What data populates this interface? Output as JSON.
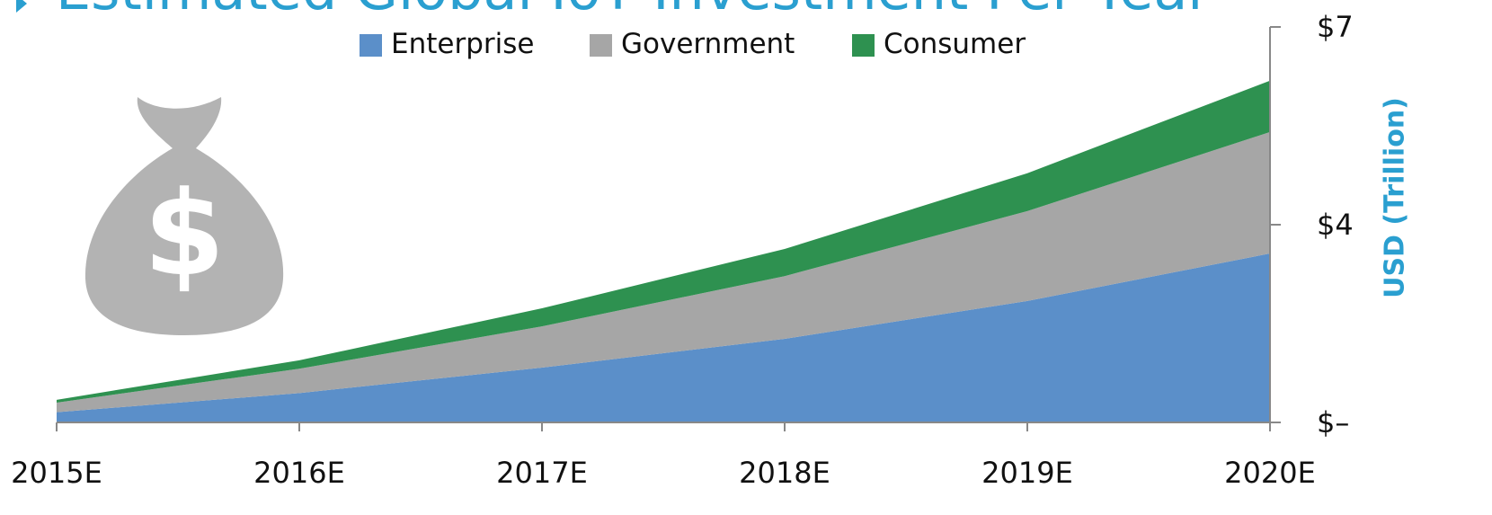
{
  "chart_data": {
    "type": "stacked_area",
    "title": "Estimated Global IoT Investment Per Year",
    "y_axis_label": "USD (Trillion)",
    "categories": [
      "2015E",
      "2016E",
      "2017E",
      "2018E",
      "2019E",
      "2020E"
    ],
    "series": [
      {
        "name": "Enterprise",
        "color": "#5b8fc9",
        "values": [
          0.18,
          0.52,
          0.97,
          1.48,
          2.15,
          2.99
        ]
      },
      {
        "name": "Government",
        "color": "#a6a6a6",
        "values": [
          0.17,
          0.43,
          0.73,
          1.11,
          1.59,
          2.15
        ]
      },
      {
        "name": "Consumer",
        "color": "#2e9150",
        "values": [
          0.05,
          0.15,
          0.32,
          0.48,
          0.67,
          0.91
        ]
      }
    ],
    "ylim": [
      0,
      7
    ],
    "yticks": [
      {
        "value": 0,
        "label": "$–"
      },
      {
        "value": 3.5,
        "label": "$4"
      },
      {
        "value": 7,
        "label": "$7"
      }
    ],
    "legend": "top"
  }
}
